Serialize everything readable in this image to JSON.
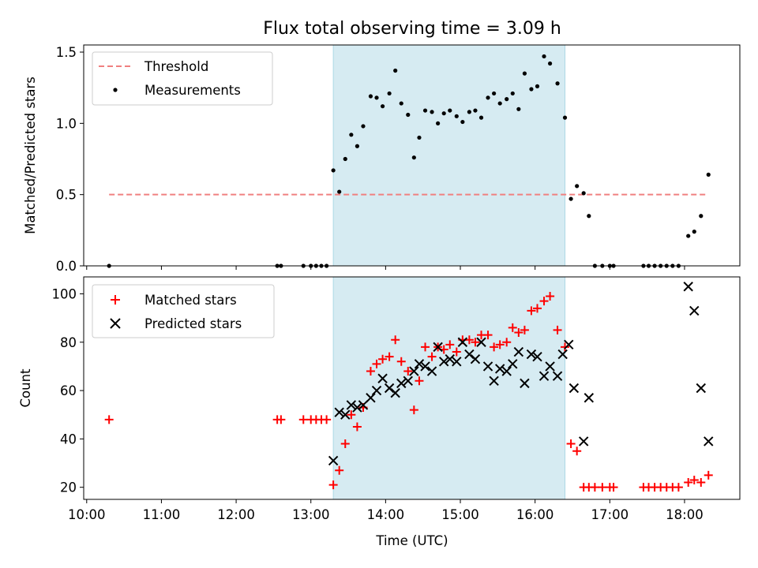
{
  "chart_data": [
    {
      "type": "scatter",
      "title": "Flux total observing time = 3.09 h",
      "xlabel": "",
      "ylabel": "Matched/Predicted stars",
      "ylim": [
        0,
        1.55
      ],
      "y_ticks": [
        "0.0",
        "0.5",
        "1.0",
        "1.5"
      ],
      "shaded_interval_hours": [
        13.3,
        16.4
      ],
      "legend_position": "upper-left",
      "grid": false,
      "threshold": {
        "name": "Threshold",
        "value": 0.5,
        "color": "#f08080",
        "x_start": 10.3,
        "x_end": 18.3
      },
      "measurements": {
        "name": "Measurements",
        "color": "#000000",
        "points": [
          [
            10.3,
            0.0
          ],
          [
            12.55,
            0.0
          ],
          [
            12.6,
            0.0
          ],
          [
            12.9,
            0.0
          ],
          [
            13.0,
            0.0
          ],
          [
            13.07,
            0.0
          ],
          [
            13.14,
            0.0
          ],
          [
            13.21,
            0.0
          ],
          [
            13.3,
            0.67
          ],
          [
            13.38,
            0.52
          ],
          [
            13.46,
            0.75
          ],
          [
            13.54,
            0.92
          ],
          [
            13.62,
            0.84
          ],
          [
            13.7,
            0.98
          ],
          [
            13.8,
            1.19
          ],
          [
            13.88,
            1.18
          ],
          [
            13.96,
            1.12
          ],
          [
            14.05,
            1.21
          ],
          [
            14.13,
            1.37
          ],
          [
            14.21,
            1.14
          ],
          [
            14.3,
            1.06
          ],
          [
            14.38,
            0.76
          ],
          [
            14.45,
            0.9
          ],
          [
            14.53,
            1.09
          ],
          [
            14.62,
            1.08
          ],
          [
            14.7,
            1.0
          ],
          [
            14.78,
            1.07
          ],
          [
            14.86,
            1.09
          ],
          [
            14.95,
            1.05
          ],
          [
            15.03,
            1.01
          ],
          [
            15.12,
            1.08
          ],
          [
            15.2,
            1.09
          ],
          [
            15.28,
            1.04
          ],
          [
            15.37,
            1.18
          ],
          [
            15.45,
            1.21
          ],
          [
            15.53,
            1.14
          ],
          [
            15.62,
            1.17
          ],
          [
            15.7,
            1.21
          ],
          [
            15.78,
            1.1
          ],
          [
            15.86,
            1.35
          ],
          [
            15.95,
            1.24
          ],
          [
            16.03,
            1.26
          ],
          [
            16.12,
            1.47
          ],
          [
            16.2,
            1.42
          ],
          [
            16.3,
            1.28
          ],
          [
            16.4,
            1.04
          ],
          [
            16.48,
            0.47
          ],
          [
            16.56,
            0.56
          ],
          [
            16.65,
            0.51
          ],
          [
            16.72,
            0.35
          ],
          [
            16.8,
            0.0
          ],
          [
            16.9,
            0.0
          ],
          [
            17.0,
            0.0
          ],
          [
            17.05,
            0.0
          ],
          [
            17.45,
            0.0
          ],
          [
            17.52,
            0.0
          ],
          [
            17.6,
            0.0
          ],
          [
            17.68,
            0.0
          ],
          [
            17.76,
            0.0
          ],
          [
            17.84,
            0.0
          ],
          [
            17.92,
            0.0
          ],
          [
            18.05,
            0.21
          ],
          [
            18.13,
            0.24
          ],
          [
            18.22,
            0.35
          ],
          [
            18.32,
            0.64
          ]
        ]
      }
    },
    {
      "type": "scatter",
      "title": "",
      "xlabel": "Time (UTC)",
      "ylabel": "Count",
      "ylim": [
        15,
        107
      ],
      "y_ticks": [
        "20",
        "40",
        "60",
        "80",
        "100"
      ],
      "x_ticks": [
        "10:00",
        "11:00",
        "12:00",
        "13:00",
        "14:00",
        "15:00",
        "16:00",
        "17:00",
        "18:00"
      ],
      "shaded_interval_hours": [
        13.3,
        16.4
      ],
      "legend_position": "upper-left",
      "grid": false,
      "series": [
        {
          "name": "Matched stars",
          "marker": "+",
          "color": "#ff0000",
          "points": [
            [
              10.3,
              48
            ],
            [
              12.55,
              48
            ],
            [
              12.6,
              48
            ],
            [
              12.9,
              48
            ],
            [
              13.0,
              48
            ],
            [
              13.07,
              48
            ],
            [
              13.14,
              48
            ],
            [
              13.21,
              48
            ],
            [
              13.3,
              21
            ],
            [
              13.38,
              27
            ],
            [
              13.46,
              38
            ],
            [
              13.54,
              50
            ],
            [
              13.62,
              45
            ],
            [
              13.7,
              53
            ],
            [
              13.8,
              68
            ],
            [
              13.88,
              71
            ],
            [
              13.96,
              73
            ],
            [
              14.05,
              74
            ],
            [
              14.13,
              81
            ],
            [
              14.21,
              72
            ],
            [
              14.3,
              68
            ],
            [
              14.38,
              52
            ],
            [
              14.45,
              64
            ],
            [
              14.53,
              78
            ],
            [
              14.62,
              74
            ],
            [
              14.7,
              78
            ],
            [
              14.78,
              77
            ],
            [
              14.86,
              79
            ],
            [
              14.95,
              76
            ],
            [
              15.03,
              81
            ],
            [
              15.12,
              81
            ],
            [
              15.2,
              80
            ],
            [
              15.28,
              83
            ],
            [
              15.37,
              83
            ],
            [
              15.45,
              78
            ],
            [
              15.53,
              79
            ],
            [
              15.62,
              80
            ],
            [
              15.7,
              86
            ],
            [
              15.78,
              84
            ],
            [
              15.86,
              85
            ],
            [
              15.95,
              93
            ],
            [
              16.03,
              94
            ],
            [
              16.12,
              97
            ],
            [
              16.2,
              99
            ],
            [
              16.3,
              85
            ],
            [
              16.4,
              78
            ],
            [
              16.48,
              38
            ],
            [
              16.56,
              35
            ],
            [
              16.65,
              20
            ],
            [
              16.72,
              20
            ],
            [
              16.8,
              20
            ],
            [
              16.9,
              20
            ],
            [
              17.0,
              20
            ],
            [
              17.05,
              20
            ],
            [
              17.45,
              20
            ],
            [
              17.52,
              20
            ],
            [
              17.6,
              20
            ],
            [
              17.68,
              20
            ],
            [
              17.76,
              20
            ],
            [
              17.84,
              20
            ],
            [
              17.92,
              20
            ],
            [
              18.05,
              22
            ],
            [
              18.13,
              23
            ],
            [
              18.22,
              22
            ],
            [
              18.32,
              25
            ]
          ]
        },
        {
          "name": "Predicted stars",
          "marker": "x",
          "color": "#000000",
          "points": [
            [
              13.3,
              31
            ],
            [
              13.38,
              51
            ],
            [
              13.46,
              50
            ],
            [
              13.54,
              54
            ],
            [
              13.62,
              53
            ],
            [
              13.7,
              54
            ],
            [
              13.8,
              57
            ],
            [
              13.88,
              60
            ],
            [
              13.96,
              65
            ],
            [
              14.05,
              61
            ],
            [
              14.13,
              59
            ],
            [
              14.21,
              63
            ],
            [
              14.3,
              64
            ],
            [
              14.38,
              68
            ],
            [
              14.45,
              71
            ],
            [
              14.53,
              70
            ],
            [
              14.62,
              68
            ],
            [
              14.7,
              78
            ],
            [
              14.78,
              72
            ],
            [
              14.86,
              73
            ],
            [
              14.95,
              72
            ],
            [
              15.03,
              80
            ],
            [
              15.12,
              75
            ],
            [
              15.2,
              73
            ],
            [
              15.28,
              80
            ],
            [
              15.37,
              70
            ],
            [
              15.45,
              64
            ],
            [
              15.53,
              69
            ],
            [
              15.62,
              68
            ],
            [
              15.7,
              71
            ],
            [
              15.78,
              76
            ],
            [
              15.86,
              63
            ],
            [
              15.95,
              75
            ],
            [
              16.03,
              74
            ],
            [
              16.12,
              66
            ],
            [
              16.2,
              70
            ],
            [
              16.3,
              66
            ],
            [
              16.37,
              75
            ],
            [
              16.45,
              79
            ],
            [
              16.52,
              61
            ],
            [
              16.65,
              39
            ],
            [
              16.72,
              57
            ],
            [
              18.05,
              103
            ],
            [
              18.13,
              93
            ],
            [
              18.22,
              61
            ],
            [
              18.32,
              39
            ]
          ]
        }
      ]
    }
  ]
}
